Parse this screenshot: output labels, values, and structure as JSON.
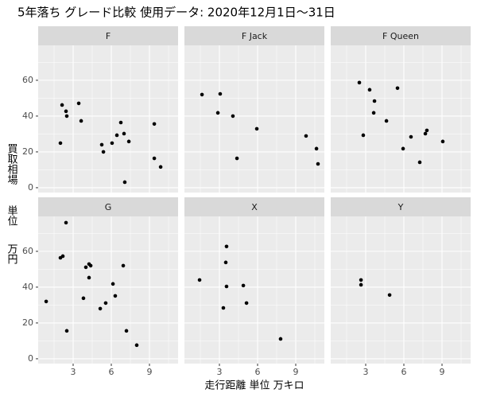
{
  "chart_data": {
    "type": "scatter",
    "title": "5年落ち グレード比較 使用データ: 2020年12月1日～31日",
    "x_label": "走行距離 単位 万キロ",
    "y_label": [
      "買取相場",
      "単位",
      "万円"
    ],
    "xlim": [
      0.25,
      11.25
    ],
    "ylim": [
      -2.7,
      79.5
    ],
    "xticks": [
      3,
      6,
      9
    ],
    "yticks": [
      0,
      20,
      40,
      60
    ],
    "x_minor_ticks": [
      1.5,
      4.5,
      7.5,
      10.5
    ],
    "y_minor_ticks": [
      10,
      30,
      50,
      70
    ],
    "grid": true,
    "color": "#000000",
    "series": [
      {
        "name": "F",
        "x": [
          2.13,
          2.44,
          2.5,
          3.44,
          3.63,
          2.0,
          5.25,
          5.38,
          6.06,
          6.44,
          6.75,
          7.0,
          7.38,
          9.38,
          9.38,
          9.88,
          7.06
        ],
        "values": [
          46.2,
          42.7,
          40,
          47.1,
          37.3,
          24.9,
          24,
          20,
          24.9,
          29.3,
          36.4,
          30.2,
          25.8,
          35.6,
          16.4,
          11.6,
          3.1
        ]
      },
      {
        "name": "F  Jack",
        "x": [
          1.63,
          3.06,
          2.88,
          4.06,
          4.38,
          5.94,
          9.81,
          10.63,
          10.75
        ],
        "values": [
          52,
          52.4,
          41.8,
          40,
          16.4,
          32.9,
          28.9,
          21.8,
          13.3
        ]
      },
      {
        "name": "F  Queen",
        "x": [
          2.5,
          2.81,
          3.31,
          3.69,
          3.63,
          4.63,
          5.5,
          5.94,
          6.56,
          7.69,
          7.81,
          7.25,
          9.06
        ],
        "values": [
          58.7,
          29.3,
          54.7,
          48.4,
          41.8,
          37.3,
          55.6,
          21.8,
          28.4,
          30.2,
          32,
          14.2,
          25.8
        ]
      },
      {
        "name": "G",
        "x": [
          0.88,
          2.44,
          2.0,
          2.19,
          2.5,
          3.81,
          4.0,
          4.25,
          4.38,
          4.25,
          5.13,
          5.56,
          6.13,
          6.31,
          6.94,
          7.19,
          8.0
        ],
        "values": [
          32,
          76,
          56.4,
          57.3,
          15.6,
          33.8,
          51.1,
          52.9,
          52,
          45.3,
          28,
          31.1,
          41.8,
          35.1,
          52,
          15.6,
          7.6
        ]
      },
      {
        "name": "X",
        "x": [
          1.44,
          3.31,
          3.56,
          3.5,
          3.56,
          4.88,
          5.13,
          7.81
        ],
        "values": [
          44,
          28.4,
          62.7,
          53.8,
          40.4,
          40.9,
          31.1,
          11.1
        ]
      },
      {
        "name": "Y",
        "x": [
          2.63,
          2.63,
          4.88
        ],
        "values": [
          44,
          41.3,
          35.6
        ]
      }
    ]
  }
}
